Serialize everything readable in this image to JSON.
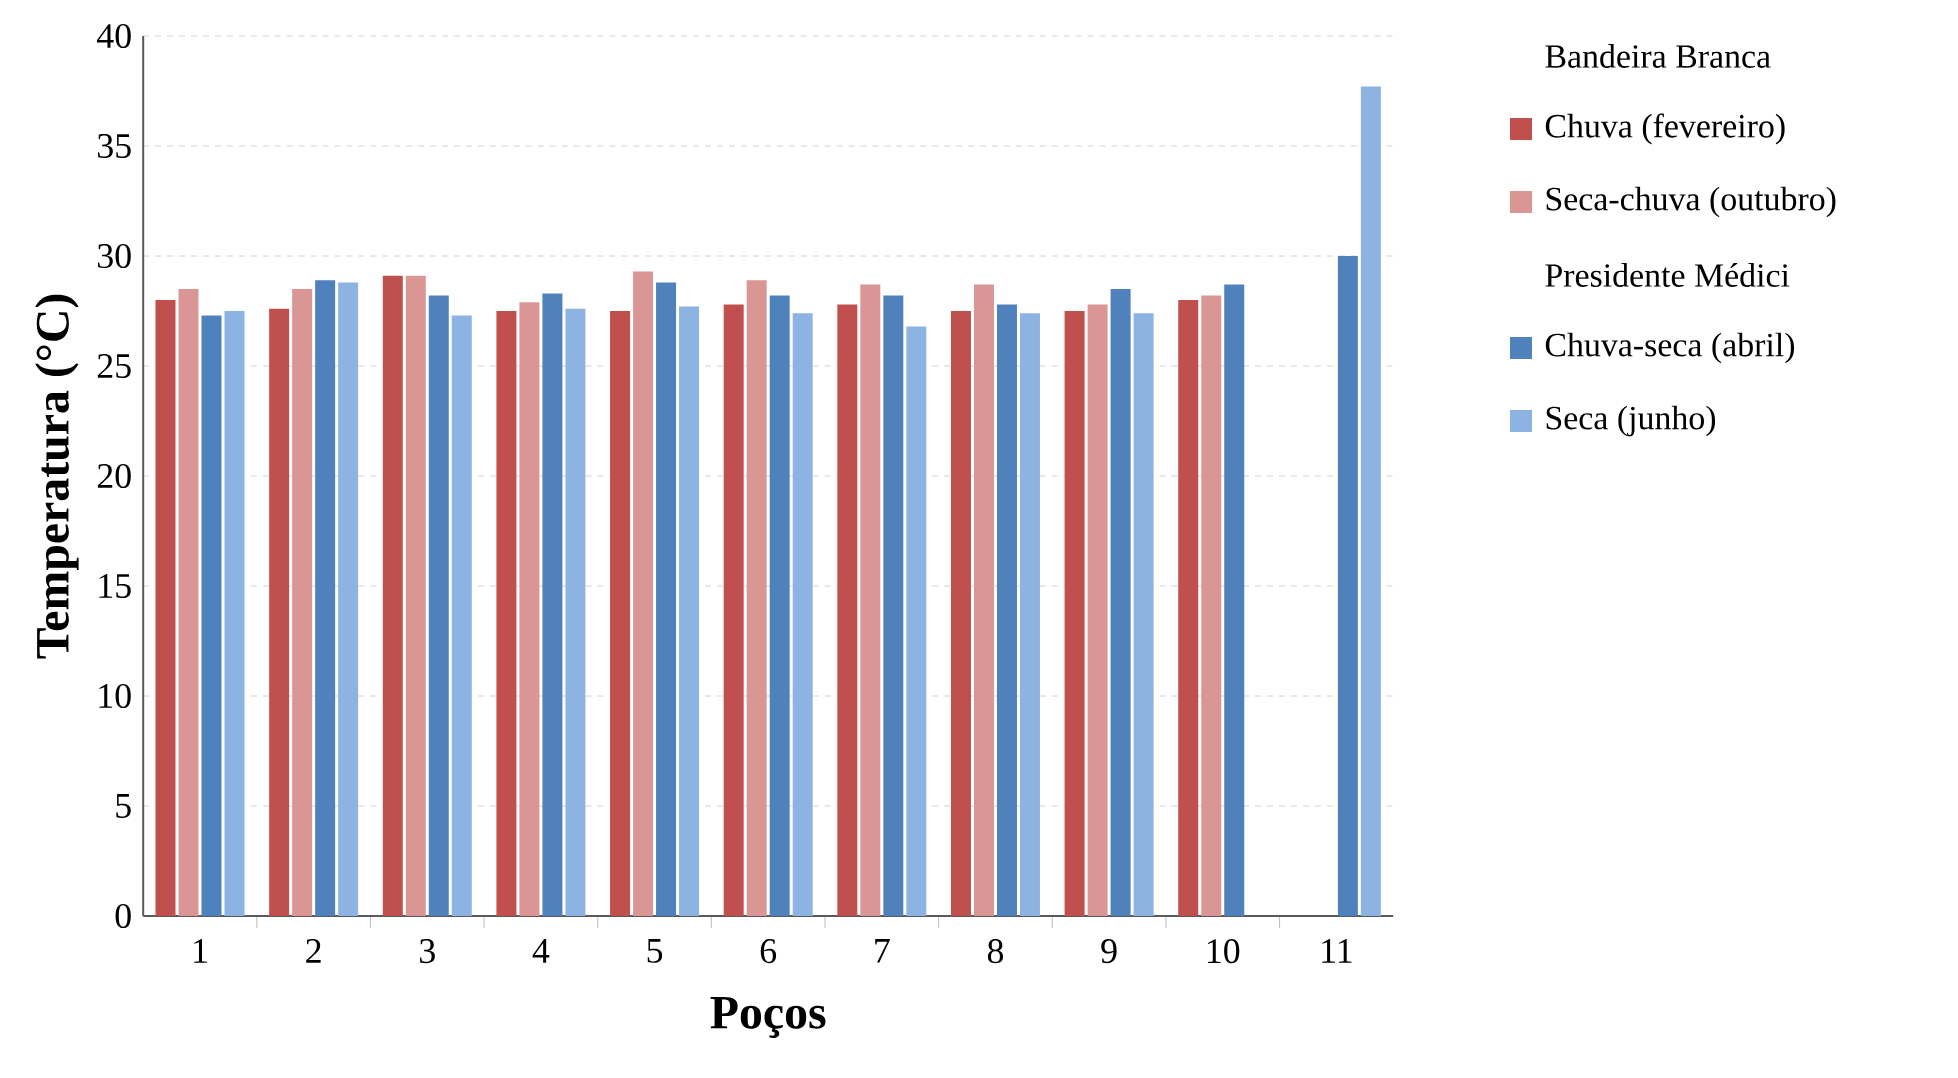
{
  "chart_data": {
    "type": "bar",
    "xlabel": "Poços",
    "ylabel": "Temperatura (°C)",
    "categories": [
      "1",
      "2",
      "3",
      "4",
      "5",
      "6",
      "7",
      "8",
      "9",
      "10",
      "11"
    ],
    "series": [
      {
        "name": "Chuva (fevereiro)",
        "color": "#c0504d",
        "values": [
          28.0,
          27.6,
          29.1,
          27.5,
          27.5,
          27.8,
          27.8,
          27.5,
          27.5,
          28.0,
          null
        ]
      },
      {
        "name": "Seca-chuva (outubro)",
        "color": "#d99694",
        "values": [
          28.5,
          28.5,
          29.1,
          27.9,
          29.3,
          28.9,
          28.7,
          28.7,
          27.8,
          28.2,
          null
        ]
      },
      {
        "name": "Chuva-seca (abril)",
        "color": "#4f81bd",
        "values": [
          27.3,
          28.9,
          28.2,
          28.3,
          28.8,
          28.2,
          28.2,
          27.8,
          28.5,
          28.7,
          30.0
        ]
      },
      {
        "name": "Seca (junho)",
        "color": "#8db3e2",
        "values": [
          27.5,
          28.8,
          27.3,
          27.6,
          27.7,
          27.4,
          26.8,
          27.4,
          27.4,
          null,
          37.7
        ]
      }
    ],
    "annotations": [
      "Bandeira Branca",
      "Presidente Médici"
    ],
    "ylim": [
      0,
      40
    ],
    "yticks": [
      0,
      5,
      10,
      15,
      20,
      25,
      30,
      35,
      40
    ],
    "grid": "y",
    "legend": "right"
  }
}
